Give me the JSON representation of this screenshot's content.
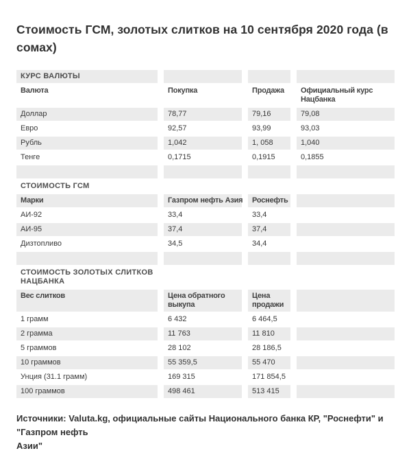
{
  "page": {
    "title": "Стоимость ГСМ, золотых слитков на 10 сентября 2020 года (в\nсомах)",
    "footer": "Источники: Valuta.kg, официальные сайты Национального банка КР, \"Роснефти\" и \"Газпром нефть\nАзии\""
  },
  "colors": {
    "background": "#ffffff",
    "row_stripe": "#ebebeb",
    "title_text": "#303030",
    "body_text": "#383838",
    "header_text": "#404040",
    "section_text": "#4d4d4d"
  },
  "chart_data": [
    {
      "type": "table",
      "title": "КУРС ВАЛЮТЫ",
      "columns": [
        "Валюта",
        "Покупка",
        "Продажа",
        "Официальный курс\nНацбанка"
      ],
      "rows": [
        [
          "Доллар",
          "78,77",
          "79,16",
          "79,08"
        ],
        [
          "Евро",
          "92,57",
          "93,99",
          "93,03"
        ],
        [
          "Рубль",
          "1,042",
          "1, 058",
          "1,040"
        ],
        [
          "Тенге",
          "0,1715",
          "0,1915",
          "0,1855"
        ]
      ]
    },
    {
      "type": "table",
      "title": "СТОИМОСТЬ ГСМ",
      "columns": [
        "Марки",
        "Газпром нефть Азия",
        "Роснефть",
        ""
      ],
      "rows": [
        [
          "АИ-92",
          "33,4",
          "33,4",
          ""
        ],
        [
          "АИ-95",
          "37,4",
          "37,4",
          ""
        ],
        [
          "Дизтопливо",
          "34,5",
          "34,4",
          ""
        ]
      ]
    },
    {
      "type": "table",
      "title": "СТОИМОСТЬ ЗОЛОТЫХ СЛИТКОВ\nНАЦБАНКА",
      "columns": [
        "Вес слитков",
        "Цена обратного\nвыкупа",
        "Цена\nпродажи",
        ""
      ],
      "rows": [
        [
          "1 грамм",
          "6 432",
          "6 464,5",
          ""
        ],
        [
          "2 грамма",
          "11 763",
          "11 810",
          ""
        ],
        [
          "5 граммов",
          "28 102",
          "28 186,5",
          ""
        ],
        [
          "10 граммов",
          "55 359,5",
          "55 470",
          ""
        ],
        [
          "Унция (31.1 грамм)",
          "169 315",
          "171 854,5",
          ""
        ],
        [
          "100 граммов",
          "498 461",
          "513 415",
          ""
        ]
      ]
    }
  ]
}
